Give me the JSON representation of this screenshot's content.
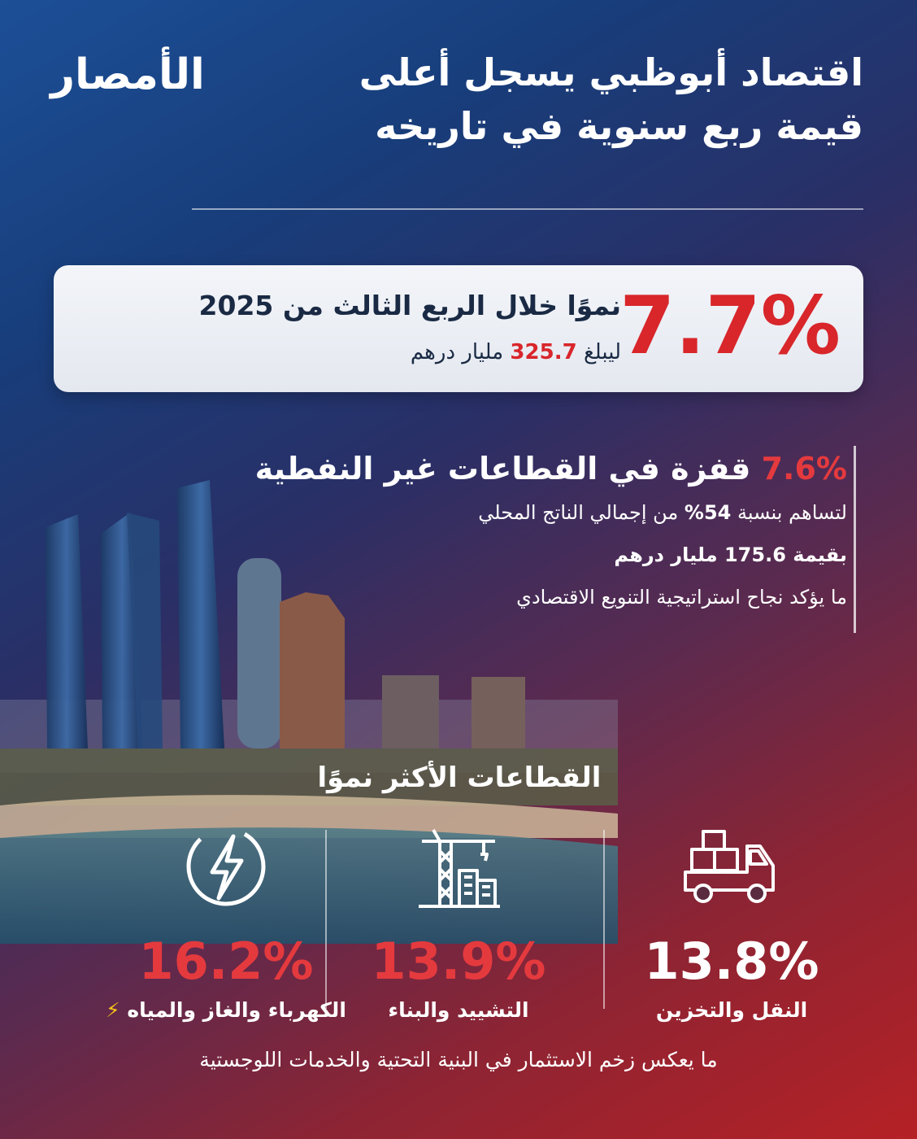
{
  "logo": {
    "text": "الأمصار",
    "globe_icon": "globe-icon"
  },
  "title": {
    "line1": "اقتصاد أبوظبي يسجل أعلى",
    "line2": "قيمة ربع سنوية في تاريخه"
  },
  "highlight": {
    "big_value": "7.7%",
    "line1": "نموًا خلال الربع الثالث من 2025",
    "line2_prefix": "ليبلغ",
    "line2_value": "325.7",
    "line2_suffix": "مليار درهم"
  },
  "non_oil": {
    "pct": "7.6%",
    "headline": "قفزة في القطاعات غير النفطية",
    "line1_prefix": "لتساهم بنسبة",
    "line1_value": "54%",
    "line1_suffix": "من إجمالي الناتج المحلي",
    "line2": "بقيمة 175.6 مليار درهم",
    "line3": "ما يؤكد نجاح استراتيجية التنويع الاقتصادي"
  },
  "sectors": {
    "title": "القطاعات الأكثر نموًا",
    "items": [
      {
        "pct": "16.2%",
        "label": "الكهرباء والغاز والمياه",
        "icon": "lightning-icon",
        "pct_color": "#e43a3e"
      },
      {
        "pct": "13.9%",
        "label": "التشييد والبناء",
        "icon": "crane-building-icon",
        "pct_color": "#e43a3e"
      },
      {
        "pct": "13.8%",
        "label": "النقل والتخزين",
        "icon": "delivery-truck-icon",
        "pct_color": "#ffffff"
      }
    ]
  },
  "footer": "ما يعكس زخم الاستثمار في البنية التحتية والخدمات اللوجستية",
  "colors": {
    "accent_red": "#d8262b",
    "card_text": "#1a2a44"
  }
}
